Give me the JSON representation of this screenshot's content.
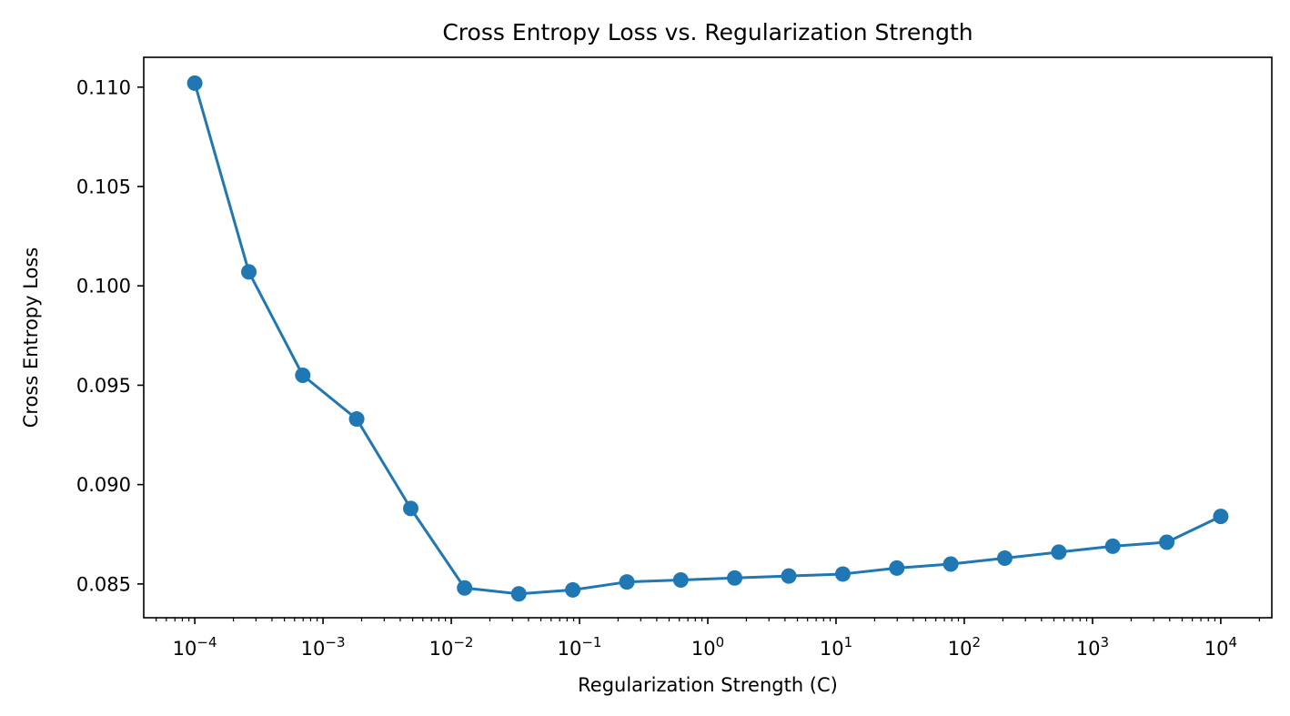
{
  "chart_data": {
    "type": "line",
    "title": "Cross Entropy Loss vs. Regularization Strength",
    "xlabel": "Regularization Strength (C)",
    "ylabel": "Cross Entropy Loss",
    "xscale": "log",
    "xlim": [
      4e-05,
      25000
    ],
    "ylim": [
      0.0833,
      0.1115
    ],
    "grid": false,
    "line_color": "#1f77b4",
    "marker": "circle",
    "x_ticks": [
      {
        "value": 0.0001,
        "base": "10",
        "exp": "−4"
      },
      {
        "value": 0.001,
        "base": "10",
        "exp": "−3"
      },
      {
        "value": 0.01,
        "base": "10",
        "exp": "−2"
      },
      {
        "value": 0.1,
        "base": "10",
        "exp": "−1"
      },
      {
        "value": 1,
        "base": "10",
        "exp": "0"
      },
      {
        "value": 10,
        "base": "10",
        "exp": "1"
      },
      {
        "value": 100,
        "base": "10",
        "exp": "2"
      },
      {
        "value": 1000,
        "base": "10",
        "exp": "3"
      },
      {
        "value": 10000,
        "base": "10",
        "exp": "4"
      }
    ],
    "y_ticks": [
      {
        "value": 0.085,
        "label": "0.085"
      },
      {
        "value": 0.09,
        "label": "0.090"
      },
      {
        "value": 0.095,
        "label": "0.095"
      },
      {
        "value": 0.1,
        "label": "0.100"
      },
      {
        "value": 0.105,
        "label": "0.105"
      },
      {
        "value": 0.11,
        "label": "0.110"
      }
    ],
    "series": [
      {
        "x": [
          0.0001,
          0.000264,
          0.000695,
          0.00183,
          0.00483,
          0.0127,
          0.0336,
          0.0886,
          0.234,
          0.616,
          1.62,
          4.28,
          11.3,
          29.8,
          78.5,
          207,
          546,
          1438,
          3793,
          10000
        ],
        "y": [
          0.1102,
          0.1007,
          0.0955,
          0.0933,
          0.0888,
          0.0848,
          0.0845,
          0.0847,
          0.0851,
          0.0852,
          0.0853,
          0.0854,
          0.0855,
          0.0858,
          0.086,
          0.0863,
          0.0866,
          0.0869,
          0.0871,
          0.0884
        ]
      }
    ]
  }
}
